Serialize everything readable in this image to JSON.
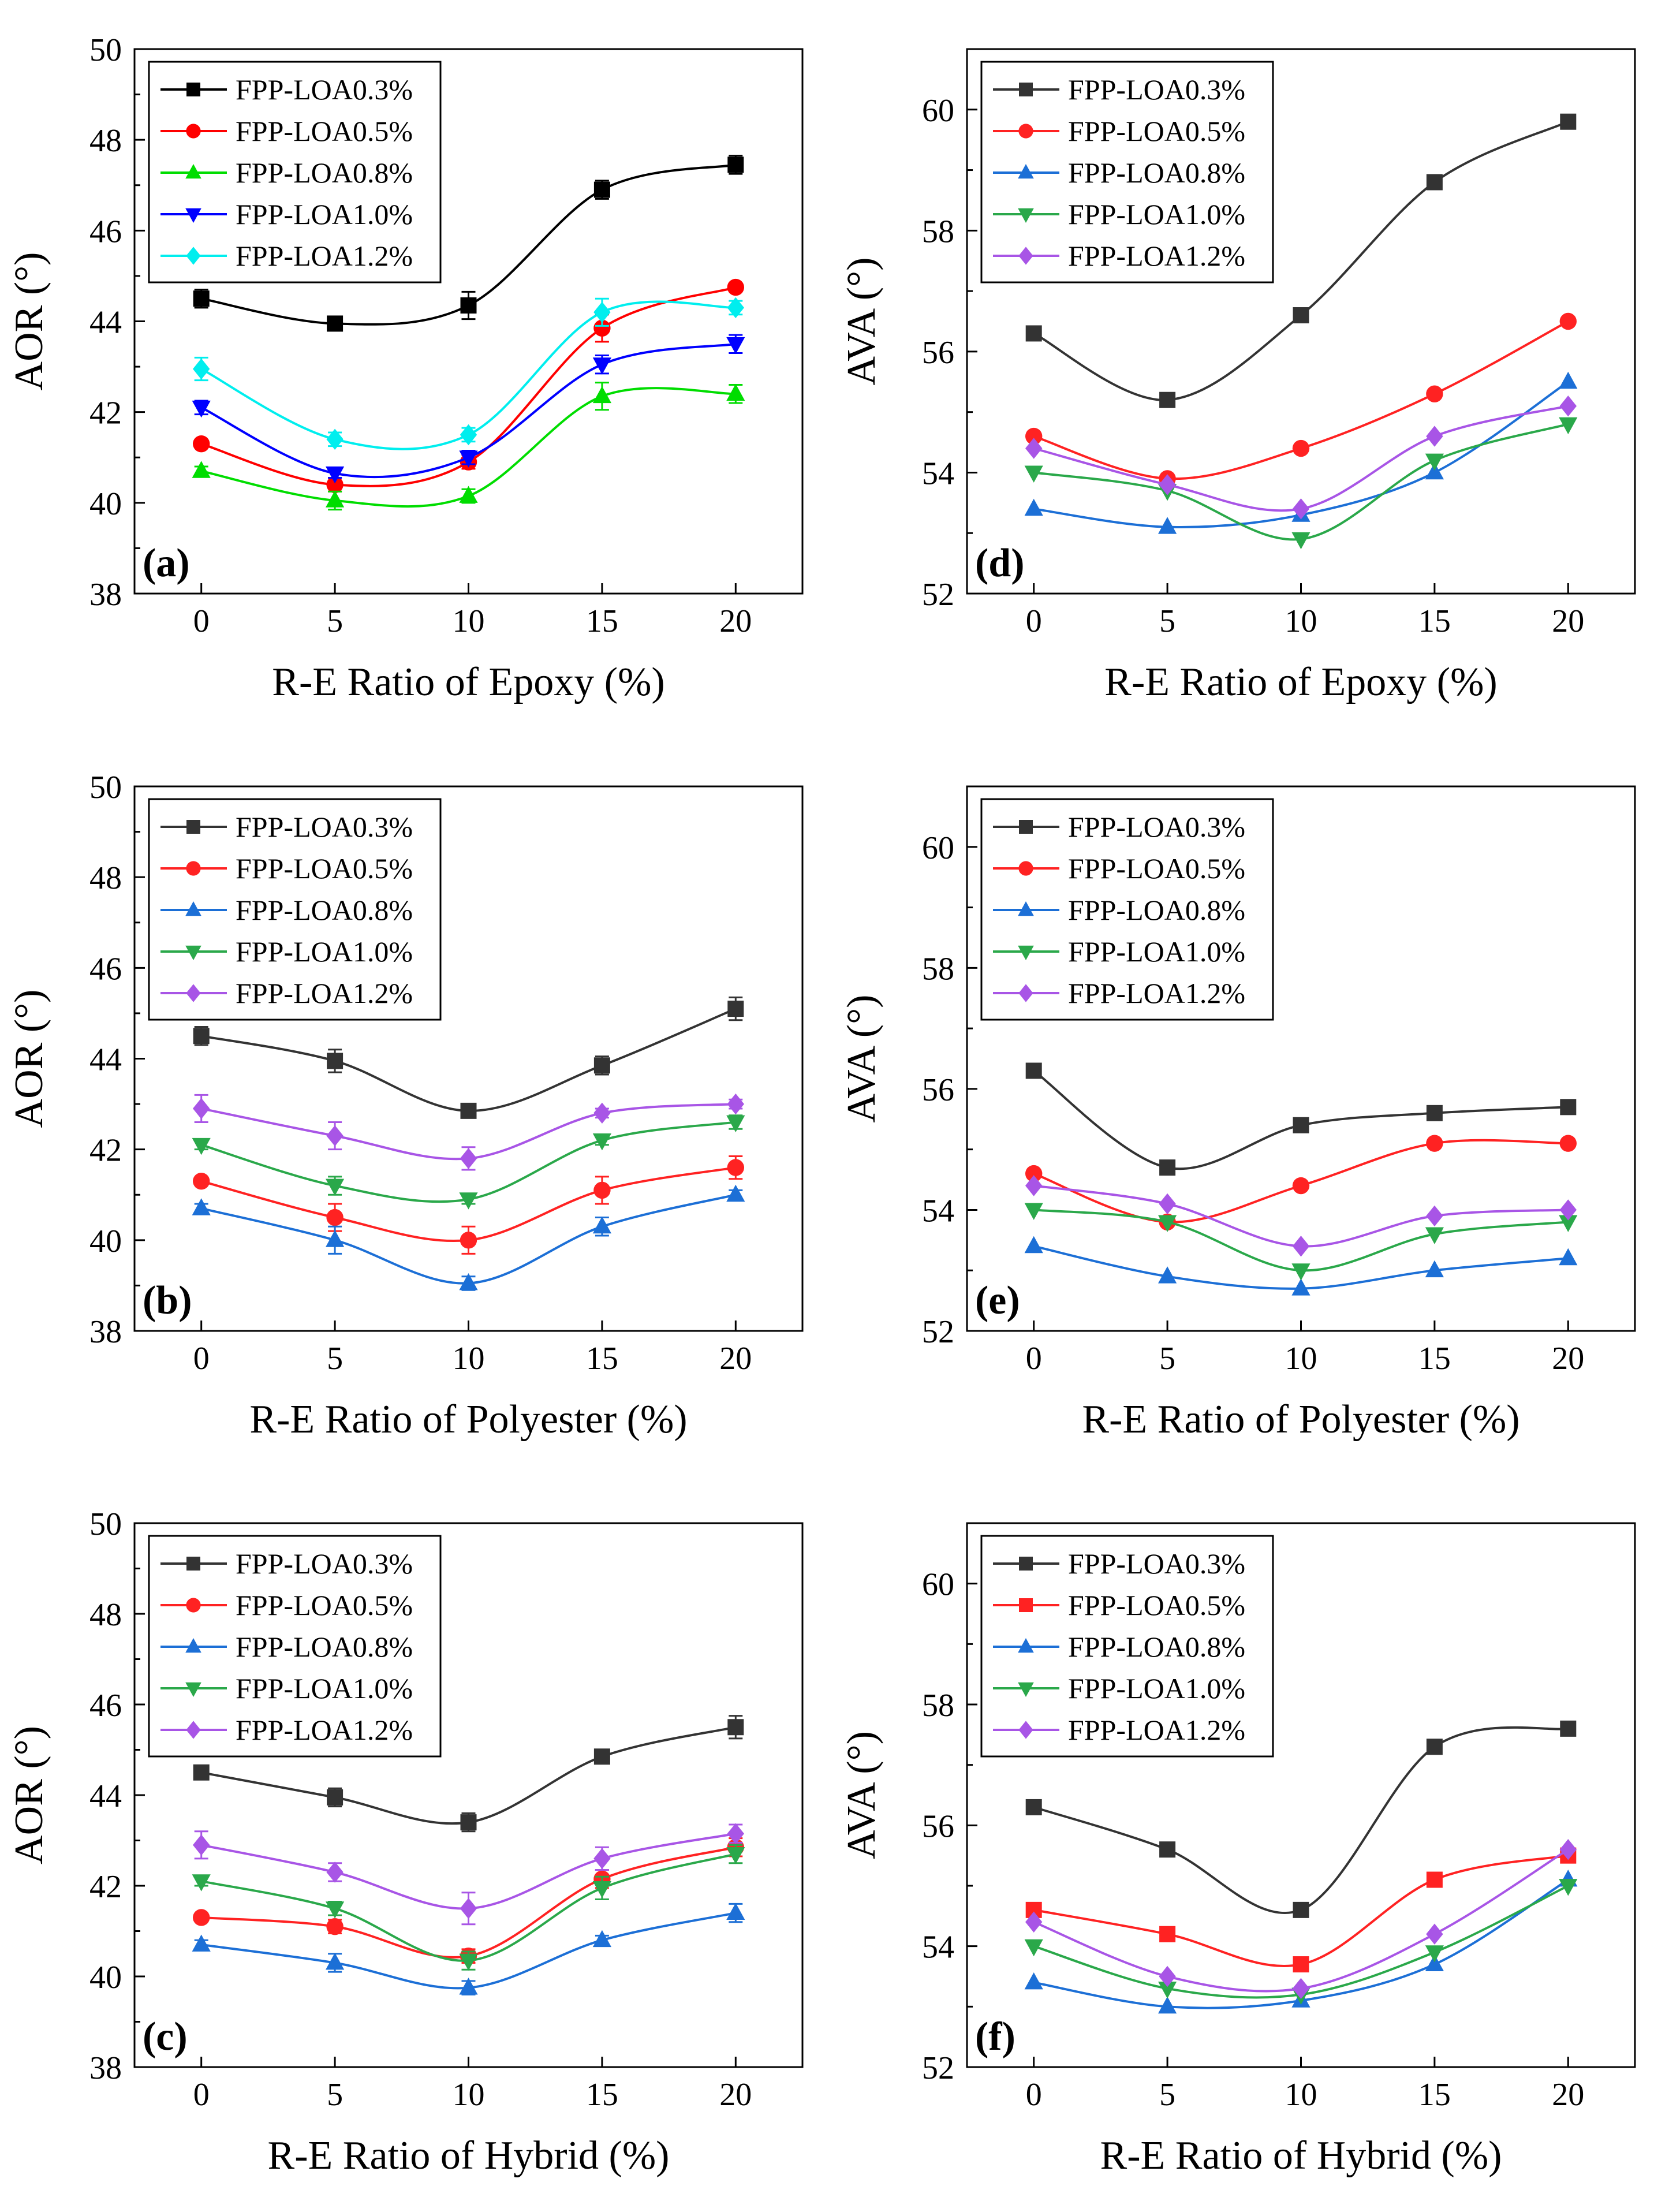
{
  "chart_data": [
    {
      "panel": "(a)",
      "type": "line",
      "xlabel": "R-E Ratio of Epoxy (%)",
      "ylabel": "AOR (°)",
      "x": [
        0,
        5,
        10,
        15,
        20
      ],
      "xlim": [
        -2.5,
        22.5
      ],
      "ylim": [
        38,
        50
      ],
      "xticks": [
        0,
        5,
        10,
        15,
        20
      ],
      "yticks": [
        38,
        40,
        42,
        44,
        46,
        48,
        50
      ],
      "legend_position": "top-left",
      "series": [
        {
          "name": "FPP-LOA0.3%",
          "color": "#000000",
          "marker": "square",
          "values": [
            44.5,
            43.95,
            44.35,
            46.9,
            47.45
          ],
          "err": [
            0.2,
            0.08,
            0.3,
            0.2,
            0.2
          ]
        },
        {
          "name": "FPP-LOA0.5%",
          "color": "#ff0000",
          "marker": "circle",
          "values": [
            41.3,
            40.4,
            40.9,
            43.85,
            44.75
          ],
          "err": [
            0.05,
            0.15,
            0.15,
            0.3,
            0.05
          ]
        },
        {
          "name": "FPP-LOA0.8%",
          "color": "#00dd00",
          "marker": "triangle-up",
          "values": [
            40.7,
            40.05,
            40.15,
            42.35,
            42.4
          ],
          "err": [
            0.1,
            0.2,
            0.15,
            0.3,
            0.2
          ]
        },
        {
          "name": "FPP-LOA1.0%",
          "color": "#0000ff",
          "marker": "triangle-down",
          "values": [
            42.1,
            40.65,
            41.0,
            43.05,
            43.5
          ],
          "err": [
            0.15,
            0.1,
            0.15,
            0.2,
            0.2
          ]
        },
        {
          "name": "FPP-LOA1.2%",
          "color": "#00eeee",
          "marker": "diamond",
          "values": [
            42.95,
            41.4,
            41.5,
            44.2,
            44.3
          ],
          "err": [
            0.25,
            0.15,
            0.15,
            0.3,
            0.15
          ]
        }
      ]
    },
    {
      "panel": "(b)",
      "type": "line",
      "xlabel": "R-E Ratio of Polyester (%)",
      "ylabel": "AOR (°)",
      "x": [
        0,
        5,
        10,
        15,
        20
      ],
      "xlim": [
        -2.5,
        22.5
      ],
      "ylim": [
        38,
        50
      ],
      "xticks": [
        0,
        5,
        10,
        15,
        20
      ],
      "yticks": [
        38,
        40,
        42,
        44,
        46,
        48,
        50
      ],
      "legend_position": "top-left",
      "series": [
        {
          "name": "FPP-LOA0.3%",
          "color": "#333333",
          "marker": "square",
          "values": [
            44.5,
            43.95,
            42.85,
            43.85,
            45.1
          ],
          "err": [
            0.2,
            0.25,
            0.15,
            0.2,
            0.25
          ]
        },
        {
          "name": "FPP-LOA0.5%",
          "color": "#ff2222",
          "marker": "circle",
          "values": [
            41.3,
            40.5,
            40.0,
            41.1,
            41.6
          ],
          "err": [
            0.05,
            0.3,
            0.3,
            0.3,
            0.25
          ]
        },
        {
          "name": "FPP-LOA0.8%",
          "color": "#1c6fd6",
          "marker": "triangle-up",
          "values": [
            40.7,
            40.0,
            39.05,
            40.3,
            41.0
          ],
          "err": [
            0.1,
            0.3,
            0.15,
            0.2,
            0.1
          ]
        },
        {
          "name": "FPP-LOA1.0%",
          "color": "#2aa84a",
          "marker": "triangle-down",
          "values": [
            42.1,
            41.2,
            40.9,
            42.2,
            42.6
          ],
          "err": [
            0.1,
            0.2,
            0.1,
            0.1,
            0.15
          ]
        },
        {
          "name": "FPP-LOA1.2%",
          "color": "#a855e6",
          "marker": "diamond",
          "values": [
            42.9,
            42.3,
            41.8,
            42.8,
            43.0
          ],
          "err": [
            0.3,
            0.3,
            0.25,
            0.1,
            0.1
          ]
        }
      ]
    },
    {
      "panel": "(c)",
      "type": "line",
      "xlabel": "R-E Ratio of Hybrid (%)",
      "ylabel": "AOR (°)",
      "x": [
        0,
        5,
        10,
        15,
        20
      ],
      "xlim": [
        -2.5,
        22.5
      ],
      "ylim": [
        38,
        50
      ],
      "xticks": [
        0,
        5,
        10,
        15,
        20
      ],
      "yticks": [
        38,
        40,
        42,
        44,
        46,
        48,
        50
      ],
      "legend_position": "top-left",
      "series": [
        {
          "name": "FPP-LOA0.3%",
          "color": "#333333",
          "marker": "square",
          "values": [
            44.5,
            43.95,
            43.4,
            44.85,
            45.5
          ],
          "err": [
            0.15,
            0.2,
            0.2,
            0.1,
            0.25
          ]
        },
        {
          "name": "FPP-LOA0.5%",
          "color": "#ff2222",
          "marker": "circle",
          "values": [
            41.3,
            41.1,
            40.45,
            42.15,
            42.85
          ],
          "err": [
            0.05,
            0.15,
            0.15,
            0.2,
            0.2
          ]
        },
        {
          "name": "FPP-LOA0.8%",
          "color": "#1c6fd6",
          "marker": "triangle-up",
          "values": [
            40.7,
            40.3,
            39.75,
            40.8,
            41.4
          ],
          "err": [
            0.1,
            0.2,
            0.15,
            0.1,
            0.2
          ]
        },
        {
          "name": "FPP-LOA1.0%",
          "color": "#2aa84a",
          "marker": "triangle-down",
          "values": [
            42.1,
            41.5,
            40.35,
            41.95,
            42.7
          ],
          "err": [
            0.1,
            0.15,
            0.2,
            0.25,
            0.2
          ]
        },
        {
          "name": "FPP-LOA1.2%",
          "color": "#a855e6",
          "marker": "diamond",
          "values": [
            42.9,
            42.3,
            41.5,
            42.6,
            43.15
          ],
          "err": [
            0.3,
            0.2,
            0.35,
            0.25,
            0.2
          ]
        }
      ]
    },
    {
      "panel": "(d)",
      "type": "line",
      "xlabel": "R-E Ratio of Epoxy (%)",
      "ylabel": "AVA (°)",
      "x": [
        0,
        5,
        10,
        15,
        20
      ],
      "xlim": [
        -2.5,
        22.5
      ],
      "ylim": [
        52,
        61
      ],
      "xticks": [
        0,
        5,
        10,
        15,
        20
      ],
      "yticks": [
        52,
        54,
        56,
        58,
        60
      ],
      "legend_position": "top-left",
      "series": [
        {
          "name": "FPP-LOA0.3%",
          "color": "#333333",
          "marker": "square",
          "values": [
            56.3,
            55.2,
            56.6,
            58.8,
            59.8
          ]
        },
        {
          "name": "FPP-LOA0.5%",
          "color": "#ff2222",
          "marker": "circle",
          "values": [
            54.6,
            53.9,
            54.4,
            55.3,
            56.5
          ]
        },
        {
          "name": "FPP-LOA0.8%",
          "color": "#1c6fd6",
          "marker": "triangle-up",
          "values": [
            53.4,
            53.1,
            53.3,
            54.0,
            55.5
          ]
        },
        {
          "name": "FPP-LOA1.0%",
          "color": "#2aa84a",
          "marker": "triangle-down",
          "values": [
            54.0,
            53.7,
            52.9,
            54.2,
            54.8
          ]
        },
        {
          "name": "FPP-LOA1.2%",
          "color": "#a855e6",
          "marker": "diamond",
          "values": [
            54.4,
            53.8,
            53.4,
            54.6,
            55.1
          ]
        }
      ]
    },
    {
      "panel": "(e)",
      "type": "line",
      "xlabel": "R-E Ratio of Polyester (%)",
      "ylabel": "AVA (°)",
      "x": [
        0,
        5,
        10,
        15,
        20
      ],
      "xlim": [
        -2.5,
        22.5
      ],
      "ylim": [
        52,
        61
      ],
      "xticks": [
        0,
        5,
        10,
        15,
        20
      ],
      "yticks": [
        52,
        54,
        56,
        58,
        60
      ],
      "legend_position": "top-left",
      "series": [
        {
          "name": "FPP-LOA0.3%",
          "color": "#333333",
          "marker": "square",
          "values": [
            56.3,
            54.7,
            55.4,
            55.6,
            55.7
          ]
        },
        {
          "name": "FPP-LOA0.5%",
          "color": "#ff2222",
          "marker": "circle",
          "values": [
            54.6,
            53.8,
            54.4,
            55.1,
            55.1
          ]
        },
        {
          "name": "FPP-LOA0.8%",
          "color": "#1c6fd6",
          "marker": "triangle-up",
          "values": [
            53.4,
            52.9,
            52.7,
            53.0,
            53.2
          ]
        },
        {
          "name": "FPP-LOA1.0%",
          "color": "#2aa84a",
          "marker": "triangle-down",
          "values": [
            54.0,
            53.8,
            53.0,
            53.6,
            53.8
          ]
        },
        {
          "name": "FPP-LOA1.2%",
          "color": "#a855e6",
          "marker": "diamond",
          "values": [
            54.4,
            54.1,
            53.4,
            53.9,
            54.0
          ]
        }
      ]
    },
    {
      "panel": "(f)",
      "type": "line",
      "xlabel": "R-E Ratio of Hybrid (%)",
      "ylabel": "AVA (°)",
      "x": [
        0,
        5,
        10,
        15,
        20
      ],
      "xlim": [
        -2.5,
        22.5
      ],
      "ylim": [
        52,
        61
      ],
      "xticks": [
        0,
        5,
        10,
        15,
        20
      ],
      "yticks": [
        52,
        54,
        56,
        58,
        60
      ],
      "legend_position": "top-left",
      "series": [
        {
          "name": "FPP-LOA0.3%",
          "color": "#333333",
          "marker": "square",
          "values": [
            56.3,
            55.6,
            54.6,
            57.3,
            57.6
          ]
        },
        {
          "name": "FPP-LOA0.5%",
          "color": "#ff2222",
          "marker": "square",
          "values": [
            54.6,
            54.2,
            53.7,
            55.1,
            55.5
          ]
        },
        {
          "name": "FPP-LOA0.8%",
          "color": "#1c6fd6",
          "marker": "triangle-up",
          "values": [
            53.4,
            53.0,
            53.1,
            53.7,
            55.1
          ]
        },
        {
          "name": "FPP-LOA1.0%",
          "color": "#2aa84a",
          "marker": "triangle-down",
          "values": [
            54.0,
            53.3,
            53.2,
            53.9,
            55.0
          ]
        },
        {
          "name": "FPP-LOA1.2%",
          "color": "#a855e6",
          "marker": "diamond",
          "values": [
            54.4,
            53.5,
            53.3,
            54.2,
            55.6
          ]
        }
      ]
    }
  ]
}
